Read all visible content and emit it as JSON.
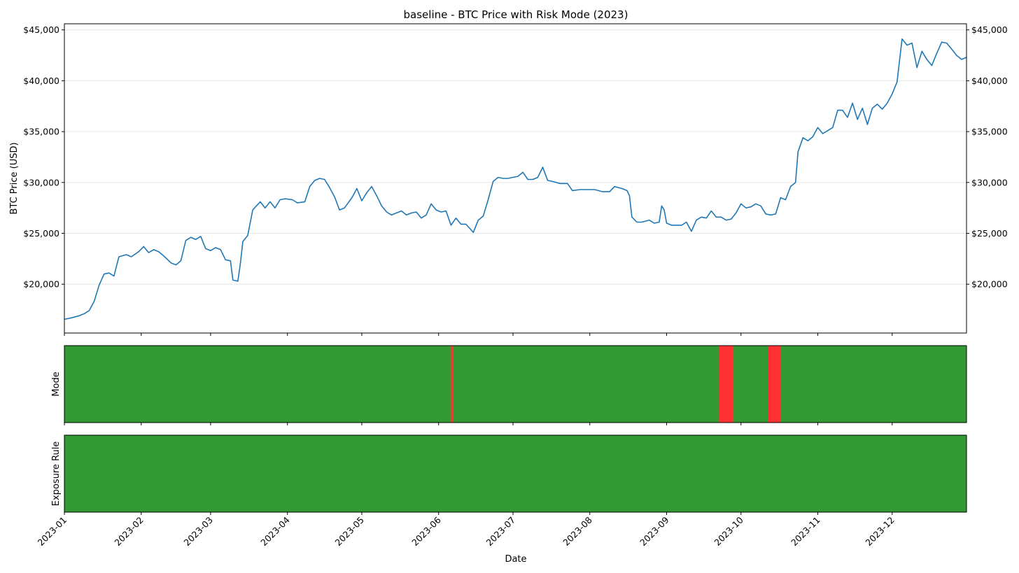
{
  "chart_data": {
    "title": "baseline - BTC Price with Risk Mode (2023)",
    "type": "line",
    "xlabel": "Date",
    "x_tick_labels": [
      "2023-01",
      "2023-02",
      "2023-03",
      "2023-04",
      "2023-05",
      "2023-06",
      "2023-07",
      "2023-08",
      "2023-09",
      "2023-10",
      "2023-11",
      "2023-12"
    ],
    "x_range": [
      "2023-01-01",
      "2023-12-31"
    ],
    "price_panel": {
      "ylabel": "BTC Price (USD)",
      "ylim": [
        15200,
        45600
      ],
      "y_tick_labels": [
        "$20,000",
        "$25,000",
        "$30,000",
        "$35,000",
        "$40,000",
        "$45,000"
      ],
      "y_tick_values": [
        20000,
        25000,
        30000,
        35000,
        40000,
        45000
      ],
      "grid": "horizontal",
      "series": [
        {
          "color": "#1f77b4",
          "points": [
            [
              "2023-01-01",
              16550
            ],
            [
              "2023-01-04",
              16700
            ],
            [
              "2023-01-07",
              16900
            ],
            [
              "2023-01-09",
              17100
            ],
            [
              "2023-01-11",
              17400
            ],
            [
              "2023-01-13",
              18300
            ],
            [
              "2023-01-15",
              19900
            ],
            [
              "2023-01-17",
              21000
            ],
            [
              "2023-01-19",
              21100
            ],
            [
              "2023-01-21",
              20800
            ],
            [
              "2023-01-23",
              22700
            ],
            [
              "2023-01-26",
              22900
            ],
            [
              "2023-01-28",
              22700
            ],
            [
              "2023-01-31",
              23200
            ],
            [
              "2023-02-02",
              23700
            ],
            [
              "2023-02-04",
              23100
            ],
            [
              "2023-02-06",
              23400
            ],
            [
              "2023-02-08",
              23200
            ],
            [
              "2023-02-10",
              22800
            ],
            [
              "2023-02-13",
              22100
            ],
            [
              "2023-02-15",
              21900
            ],
            [
              "2023-02-17",
              22300
            ],
            [
              "2023-02-19",
              24300
            ],
            [
              "2023-02-21",
              24600
            ],
            [
              "2023-02-23",
              24400
            ],
            [
              "2023-02-25",
              24700
            ],
            [
              "2023-02-27",
              23500
            ],
            [
              "2023-03-01",
              23300
            ],
            [
              "2023-03-03",
              23600
            ],
            [
              "2023-03-05",
              23400
            ],
            [
              "2023-03-07",
              22400
            ],
            [
              "2023-03-09",
              22300
            ],
            [
              "2023-03-10",
              20400
            ],
            [
              "2023-03-12",
              20300
            ],
            [
              "2023-03-13",
              22000
            ],
            [
              "2023-03-14",
              24200
            ],
            [
              "2023-03-16",
              24800
            ],
            [
              "2023-03-18",
              27300
            ],
            [
              "2023-03-21",
              28100
            ],
            [
              "2023-03-23",
              27500
            ],
            [
              "2023-03-25",
              28100
            ],
            [
              "2023-03-27",
              27500
            ],
            [
              "2023-03-29",
              28300
            ],
            [
              "2023-03-31",
              28400
            ],
            [
              "2023-04-03",
              28300
            ],
            [
              "2023-04-05",
              28000
            ],
            [
              "2023-04-08",
              28100
            ],
            [
              "2023-04-10",
              29600
            ],
            [
              "2023-04-12",
              30200
            ],
            [
              "2023-04-14",
              30400
            ],
            [
              "2023-04-16",
              30300
            ],
            [
              "2023-04-18",
              29500
            ],
            [
              "2023-04-20",
              28600
            ],
            [
              "2023-04-22",
              27300
            ],
            [
              "2023-04-24",
              27500
            ],
            [
              "2023-04-27",
              28500
            ],
            [
              "2023-04-29",
              29400
            ],
            [
              "2023-05-01",
              28200
            ],
            [
              "2023-05-03",
              29000
            ],
            [
              "2023-05-05",
              29600
            ],
            [
              "2023-05-07",
              28700
            ],
            [
              "2023-05-09",
              27700
            ],
            [
              "2023-05-11",
              27100
            ],
            [
              "2023-05-13",
              26800
            ],
            [
              "2023-05-15",
              27000
            ],
            [
              "2023-05-17",
              27200
            ],
            [
              "2023-05-19",
              26800
            ],
            [
              "2023-05-21",
              27000
            ],
            [
              "2023-05-23",
              27100
            ],
            [
              "2023-05-25",
              26500
            ],
            [
              "2023-05-27",
              26800
            ],
            [
              "2023-05-29",
              27900
            ],
            [
              "2023-05-31",
              27300
            ],
            [
              "2023-06-02",
              27100
            ],
            [
              "2023-06-04",
              27200
            ],
            [
              "2023-06-06",
              25800
            ],
            [
              "2023-06-08",
              26500
            ],
            [
              "2023-06-10",
              25900
            ],
            [
              "2023-06-12",
              25900
            ],
            [
              "2023-06-15",
              25100
            ],
            [
              "2023-06-17",
              26300
            ],
            [
              "2023-06-19",
              26700
            ],
            [
              "2023-06-21",
              28300
            ],
            [
              "2023-06-23",
              30100
            ],
            [
              "2023-06-25",
              30500
            ],
            [
              "2023-06-27",
              30400
            ],
            [
              "2023-06-29",
              30400
            ],
            [
              "2023-07-01",
              30500
            ],
            [
              "2023-07-03",
              30600
            ],
            [
              "2023-07-05",
              31000
            ],
            [
              "2023-07-07",
              30300
            ],
            [
              "2023-07-09",
              30300
            ],
            [
              "2023-07-11",
              30500
            ],
            [
              "2023-07-13",
              31500
            ],
            [
              "2023-07-15",
              30200
            ],
            [
              "2023-07-17",
              30100
            ],
            [
              "2023-07-20",
              29900
            ],
            [
              "2023-07-23",
              29900
            ],
            [
              "2023-07-25",
              29200
            ],
            [
              "2023-07-28",
              29300
            ],
            [
              "2023-07-31",
              29300
            ],
            [
              "2023-08-03",
              29300
            ],
            [
              "2023-08-06",
              29100
            ],
            [
              "2023-08-09",
              29100
            ],
            [
              "2023-08-11",
              29600
            ],
            [
              "2023-08-14",
              29400
            ],
            [
              "2023-08-16",
              29200
            ],
            [
              "2023-08-17",
              28700
            ],
            [
              "2023-08-18",
              26600
            ],
            [
              "2023-08-20",
              26100
            ],
            [
              "2023-08-22",
              26100
            ],
            [
              "2023-08-25",
              26300
            ],
            [
              "2023-08-27",
              26000
            ],
            [
              "2023-08-29",
              26100
            ],
            [
              "2023-08-30",
              27700
            ],
            [
              "2023-08-31",
              27300
            ],
            [
              "2023-09-01",
              26000
            ],
            [
              "2023-09-03",
              25800
            ],
            [
              "2023-09-05",
              25800
            ],
            [
              "2023-09-07",
              25800
            ],
            [
              "2023-09-09",
              26100
            ],
            [
              "2023-09-11",
              25200
            ],
            [
              "2023-09-13",
              26300
            ],
            [
              "2023-09-15",
              26600
            ],
            [
              "2023-09-17",
              26500
            ],
            [
              "2023-09-19",
              27200
            ],
            [
              "2023-09-21",
              26600
            ],
            [
              "2023-09-23",
              26600
            ],
            [
              "2023-09-25",
              26300
            ],
            [
              "2023-09-27",
              26400
            ],
            [
              "2023-09-29",
              27000
            ],
            [
              "2023-10-01",
              27900
            ],
            [
              "2023-10-03",
              27500
            ],
            [
              "2023-10-05",
              27600
            ],
            [
              "2023-10-07",
              27900
            ],
            [
              "2023-10-09",
              27700
            ],
            [
              "2023-10-11",
              26900
            ],
            [
              "2023-10-13",
              26800
            ],
            [
              "2023-10-15",
              26900
            ],
            [
              "2023-10-17",
              28500
            ],
            [
              "2023-10-19",
              28300
            ],
            [
              "2023-10-21",
              29600
            ],
            [
              "2023-10-23",
              30000
            ],
            [
              "2023-10-24",
              33000
            ],
            [
              "2023-10-26",
              34400
            ],
            [
              "2023-10-28",
              34100
            ],
            [
              "2023-10-30",
              34500
            ],
            [
              "2023-11-01",
              35400
            ],
            [
              "2023-11-03",
              34800
            ],
            [
              "2023-11-05",
              35100
            ],
            [
              "2023-11-07",
              35400
            ],
            [
              "2023-11-09",
              37100
            ],
            [
              "2023-11-11",
              37100
            ],
            [
              "2023-11-13",
              36400
            ],
            [
              "2023-11-15",
              37800
            ],
            [
              "2023-11-17",
              36200
            ],
            [
              "2023-11-19",
              37300
            ],
            [
              "2023-11-21",
              35700
            ],
            [
              "2023-11-23",
              37300
            ],
            [
              "2023-11-25",
              37700
            ],
            [
              "2023-11-27",
              37200
            ],
            [
              "2023-11-29",
              37800
            ],
            [
              "2023-12-01",
              38700
            ],
            [
              "2023-12-03",
              39900
            ],
            [
              "2023-12-05",
              44100
            ],
            [
              "2023-12-07",
              43500
            ],
            [
              "2023-12-09",
              43700
            ],
            [
              "2023-12-11",
              41300
            ],
            [
              "2023-12-13",
              42900
            ],
            [
              "2023-12-15",
              42100
            ],
            [
              "2023-12-17",
              41500
            ],
            [
              "2023-12-19",
              42700
            ],
            [
              "2023-12-21",
              43800
            ],
            [
              "2023-12-23",
              43700
            ],
            [
              "2023-12-25",
              43100
            ],
            [
              "2023-12-27",
              42500
            ],
            [
              "2023-12-29",
              42100
            ],
            [
              "2023-12-31",
              42300
            ]
          ]
        }
      ]
    },
    "mode_panel": {
      "ylabel": "Mode",
      "colors": {
        "on": "#339933",
        "off": "#ff3333"
      },
      "off_ranges": [
        [
          "2023-06-06",
          "2023-06-07"
        ],
        [
          "2023-09-22",
          "2023-09-28"
        ],
        [
          "2023-10-12",
          "2023-10-17"
        ]
      ]
    },
    "exposure_panel": {
      "ylabel": "Exposure Rule",
      "colors": {
        "on": "#339933",
        "off": "#ff3333"
      },
      "off_ranges": []
    }
  }
}
